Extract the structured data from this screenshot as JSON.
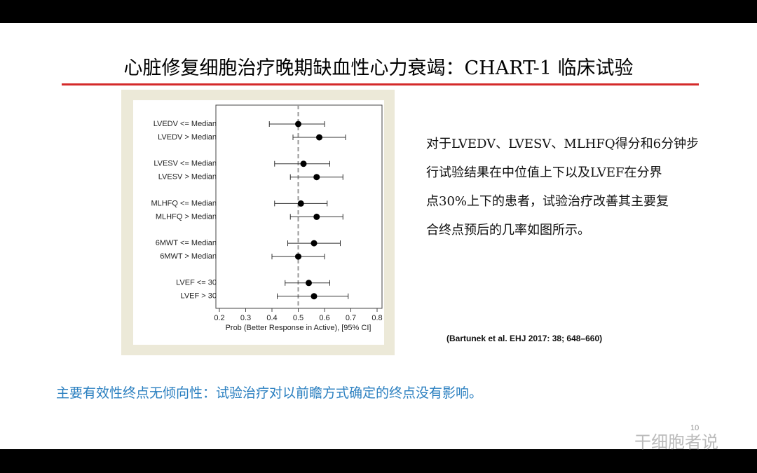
{
  "slide_title": "心脏修复细胞治疗晚期缺血性心力衰竭：CHART-1 临床试验",
  "body_lines": [
    "对于LVEDV、LVESV、MLHFQ得分和6分钟步",
    "行试验结果在中位值上下以及LVEF在分界",
    "点30%上下的患者，试验治疗改善其主要复",
    "合终点预后的几率如图所示。"
  ],
  "citation": "(Bartunek et al. EHJ 2017: 38; 648–660)",
  "conclusion": "主要有效性终点无倾向性：试验治疗对以前瞻方式确定的终点没有影响。",
  "page_number": "10",
  "watermark": "干细胞者说",
  "chart_data": {
    "type": "forest",
    "x_label": "Prob (Better Response in Active), [95% CI]",
    "categories": [
      "LVEDV <= Median",
      "LVEDV > Median",
      "LVESV <= Median",
      "LVESV > Median",
      "MLHFQ <= Median",
      "MLHFQ > Median",
      "6MWT <= Median",
      "6MWT > Median",
      "LVEF <= 30",
      "LVEF > 30"
    ],
    "values": [
      0.5,
      0.58,
      0.52,
      0.57,
      0.51,
      0.57,
      0.56,
      0.5,
      0.54,
      0.56
    ],
    "ci_low": [
      0.39,
      0.48,
      0.41,
      0.47,
      0.41,
      0.47,
      0.46,
      0.4,
      0.45,
      0.42
    ],
    "ci_high": [
      0.6,
      0.68,
      0.62,
      0.67,
      0.61,
      0.67,
      0.66,
      0.6,
      0.62,
      0.69
    ],
    "reference": 0.5,
    "color": "#000000",
    "xlim": [
      0.2,
      0.8
    ],
    "xticks": [
      0.2,
      0.3,
      0.4,
      0.5,
      0.6,
      0.7,
      0.8
    ]
  }
}
